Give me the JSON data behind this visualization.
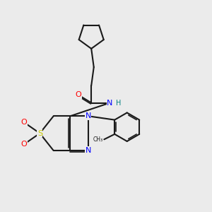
{
  "bg_color": "#ebebeb",
  "bond_color": "#1a1a1a",
  "N_color": "#0000ff",
  "O_color": "#ff0000",
  "S_color": "#cccc00",
  "NH_color": "#008080",
  "lw": 1.5,
  "xlim": [
    0,
    10
  ],
  "ylim": [
    0,
    10
  ]
}
